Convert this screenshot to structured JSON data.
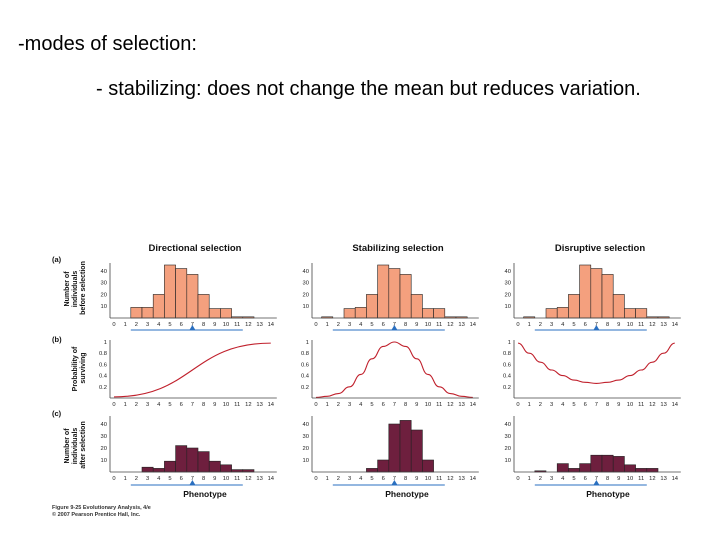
{
  "slide": {
    "line1": "-modes of selection:",
    "line2": "- stabilizing: does not change the mean but reduces variation."
  },
  "figure": {
    "columns": [
      "Directional selection",
      "Stabilizing selection",
      "Disruptive selection"
    ],
    "row_letters": [
      "(a)",
      "(b)",
      "(c)"
    ],
    "ylabels": {
      "a": [
        "Number of",
        "individuals",
        "before selection"
      ],
      "b": [
        "Probability of",
        "surviving"
      ],
      "c": [
        "Number of",
        "individuals",
        "after selection"
      ]
    },
    "xlabel": "Phenotype",
    "caption": [
      "Figure 9-25 Evolutionary Analysis, 4/e",
      "© 2007 Pearson Prentice Hall, Inc."
    ]
  },
  "colors": {
    "before_bar": "#f4a07e",
    "after_bar": "#6e1f3e",
    "curve": "#c0202c",
    "marker": "#2a6fc0"
  },
  "chart_data": [
    {
      "panel": "directional-before",
      "type": "bar",
      "categories": [
        "0",
        "1",
        "2",
        "3",
        "4",
        "5",
        "6",
        "7",
        "8",
        "9",
        "10",
        "11",
        "12",
        "13",
        "14"
      ],
      "values": [
        0,
        0,
        9,
        9,
        20,
        45,
        42,
        37,
        20,
        8,
        8,
        1,
        1,
        0,
        0
      ],
      "ylim": [
        0,
        45
      ],
      "yticks": [
        "10",
        "20",
        "30",
        "40"
      ]
    },
    {
      "panel": "stabilizing-before",
      "type": "bar",
      "categories": [
        "0",
        "1",
        "2",
        "3",
        "4",
        "5",
        "6",
        "7",
        "8",
        "9",
        "10",
        "11",
        "12",
        "13",
        "14"
      ],
      "values": [
        0,
        1,
        0,
        8,
        9,
        20,
        45,
        42,
        37,
        20,
        8,
        8,
        1,
        1,
        0
      ],
      "ylim": [
        0,
        45
      ],
      "yticks": [
        "10",
        "20",
        "30",
        "40"
      ]
    },
    {
      "panel": "disruptive-before",
      "type": "bar",
      "categories": [
        "0",
        "1",
        "2",
        "3",
        "4",
        "5",
        "6",
        "7",
        "8",
        "9",
        "10",
        "11",
        "12",
        "13",
        "14"
      ],
      "values": [
        0,
        1,
        0,
        8,
        9,
        20,
        45,
        42,
        37,
        20,
        8,
        8,
        1,
        1,
        0
      ],
      "ylim": [
        0,
        45
      ],
      "yticks": [
        "10",
        "20",
        "30",
        "40"
      ]
    },
    {
      "panel": "directional-survival",
      "type": "line",
      "x": [
        0,
        14
      ],
      "y": [
        0.02,
        0.98
      ],
      "ylim": [
        0,
        1
      ],
      "yticks": [
        "0.2",
        "0.4",
        "0.6",
        "0.8",
        "1"
      ]
    },
    {
      "panel": "stabilizing-survival",
      "type": "line",
      "x": [
        0,
        1,
        2,
        3,
        4,
        5,
        6,
        7,
        8,
        9,
        10,
        11,
        12,
        13,
        14
      ],
      "y": [
        0.01,
        0.03,
        0.08,
        0.2,
        0.42,
        0.7,
        0.92,
        1.0,
        0.92,
        0.7,
        0.42,
        0.2,
        0.08,
        0.03,
        0.01
      ],
      "ylim": [
        0,
        1
      ],
      "yticks": [
        "0.2",
        "0.4",
        "0.6",
        "0.8",
        "1"
      ]
    },
    {
      "panel": "disruptive-survival",
      "type": "line",
      "x": [
        0,
        1,
        2,
        3,
        4,
        5,
        6,
        7,
        8,
        9,
        10,
        11,
        12,
        13,
        14
      ],
      "y": [
        0.98,
        0.8,
        0.64,
        0.5,
        0.4,
        0.32,
        0.28,
        0.26,
        0.28,
        0.32,
        0.4,
        0.5,
        0.64,
        0.8,
        0.98
      ],
      "ylim": [
        0,
        1
      ],
      "yticks": [
        "0.2",
        "0.4",
        "0.6",
        "0.8",
        "1"
      ]
    },
    {
      "panel": "directional-after",
      "type": "bar",
      "categories": [
        "0",
        "1",
        "2",
        "3",
        "4",
        "5",
        "6",
        "7",
        "8",
        "9",
        "10",
        "11",
        "12",
        "13",
        "14"
      ],
      "values": [
        0,
        0,
        0,
        4,
        3,
        9,
        22,
        20,
        17,
        9,
        6,
        2,
        2,
        0,
        0
      ],
      "ylim": [
        0,
        45
      ],
      "yticks": [
        "10",
        "20",
        "30",
        "40"
      ]
    },
    {
      "panel": "stabilizing-after",
      "type": "bar",
      "categories": [
        "0",
        "1",
        "2",
        "3",
        "4",
        "5",
        "6",
        "7",
        "8",
        "9",
        "10",
        "11",
        "12",
        "13",
        "14"
      ],
      "values": [
        0,
        0,
        0,
        0,
        0,
        3,
        10,
        40,
        43,
        35,
        10,
        0,
        0,
        0,
        0
      ],
      "ylim": [
        0,
        45
      ],
      "yticks": [
        "10",
        "20",
        "30",
        "40"
      ]
    },
    {
      "panel": "disruptive-after",
      "type": "bar",
      "categories": [
        "0",
        "1",
        "2",
        "3",
        "4",
        "5",
        "6",
        "7",
        "8",
        "9",
        "10",
        "11",
        "12",
        "13",
        "14"
      ],
      "values": [
        0,
        0,
        1,
        0,
        7,
        3,
        7,
        14,
        14,
        13,
        6,
        3,
        3,
        0,
        0
      ],
      "ylim": [
        0,
        45
      ],
      "yticks": [
        "10",
        "20",
        "30",
        "40"
      ]
    }
  ]
}
